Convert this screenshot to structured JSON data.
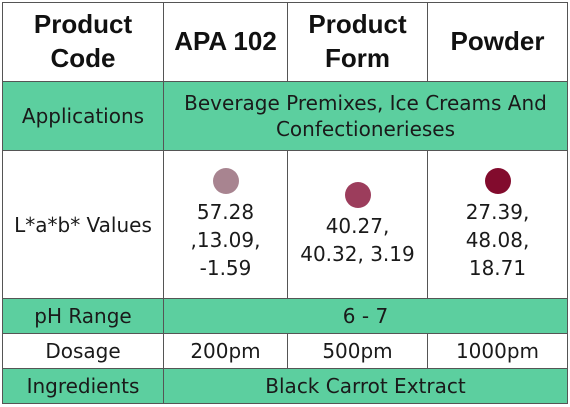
{
  "header": {
    "product_code_label": "Product Code",
    "product_code_value": "APA 102",
    "product_form_label": "Product Form",
    "product_form_value": "Powder"
  },
  "applications": {
    "label": "Applications",
    "value": "Beverage Premixes, Ice Creams And Confectionerieses"
  },
  "lab": {
    "label": "L*a*b* Values",
    "samples": [
      {
        "color": "#a88490",
        "lines": [
          "57.28",
          ",13.09,",
          "-1.59"
        ]
      },
      {
        "color": "#9c3d5c",
        "lines": [
          "40.27,",
          "40.32, 3.19"
        ]
      },
      {
        "color": "#820b2d",
        "lines": [
          "27.39,",
          "48.08,",
          "18.71"
        ]
      }
    ]
  },
  "ph": {
    "label": "pH Range",
    "value": "6 - 7"
  },
  "dosage": {
    "label": "Dosage",
    "values": [
      "200pm",
      "500pm",
      "1000pm"
    ]
  },
  "ingredients": {
    "label": "Ingredients",
    "value": "Black Carrot Extract"
  },
  "colors": {
    "green_row": "#5ccf9f",
    "border": "#555555"
  }
}
